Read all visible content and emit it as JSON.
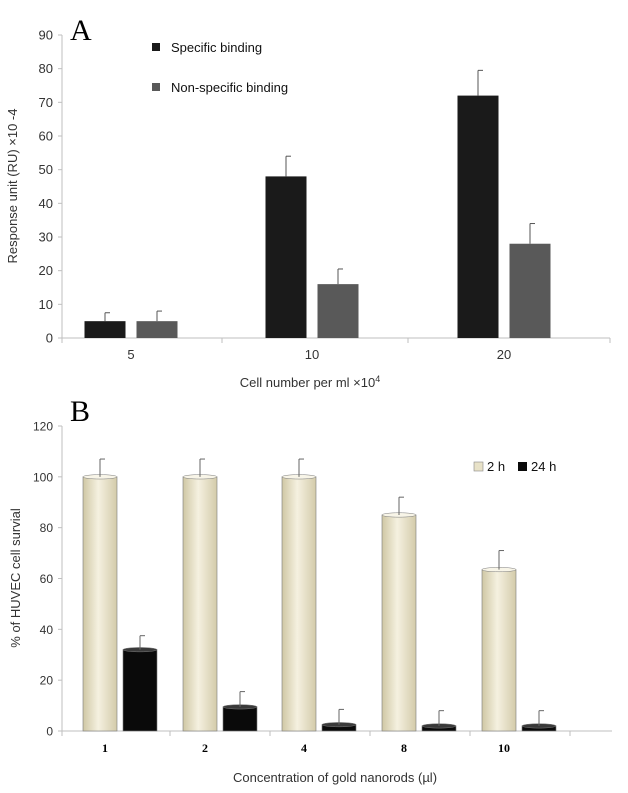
{
  "chart_data": [
    {
      "panel": "A",
      "type": "bar",
      "title": "",
      "categories": [
        "5",
        "10",
        "20"
      ],
      "series": [
        {
          "name": "Specific binding",
          "values": [
            5,
            48,
            72
          ],
          "errors": [
            2.5,
            6,
            7.5
          ],
          "color": "#1a1a1a"
        },
        {
          "name": "Non-specific binding",
          "values": [
            5,
            16,
            28
          ],
          "errors": [
            3,
            4.5,
            6
          ],
          "color": "#595959"
        }
      ],
      "xlabel": "Cell number per ml ×10",
      "xlabel_exp": "4",
      "ylabel": "Response unit (RU) ×10 -4",
      "ylim": [
        0,
        90
      ],
      "yticks": [
        0,
        10,
        20,
        30,
        40,
        50,
        60,
        70,
        80,
        90
      ],
      "grid": false,
      "legend": "top-left"
    },
    {
      "panel": "B",
      "type": "bar",
      "title": "",
      "categories": [
        "1",
        "2",
        "4",
        "8",
        "10"
      ],
      "series": [
        {
          "name": "2 h",
          "values": [
            100,
            100,
            100,
            85,
            63.5
          ],
          "errors": [
            7,
            7,
            7,
            7,
            7.5
          ],
          "color": "#e8e2c8"
        },
        {
          "name": "24 h",
          "values": [
            32,
            9.5,
            2.5,
            2,
            2
          ],
          "errors": [
            5.5,
            6,
            6,
            6,
            6
          ],
          "color": "#0a0a0a"
        }
      ],
      "xlabel": "Concentration of gold nanorods (µl)",
      "ylabel": "% of  HUVEC cell survial",
      "ylim": [
        0,
        120
      ],
      "yticks": [
        0,
        20,
        40,
        60,
        80,
        100,
        120
      ],
      "grid": false,
      "legend": "top-right"
    }
  ]
}
